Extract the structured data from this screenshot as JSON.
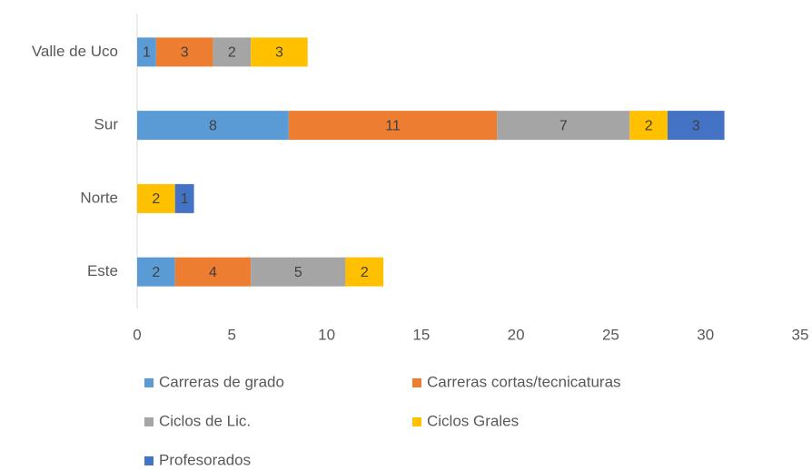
{
  "chart_data": {
    "type": "stacked_barh",
    "categories": [
      "Valle de Uco",
      "Sur",
      "Norte",
      "Este"
    ],
    "series": [
      {
        "name": "Carreras de grado",
        "color": "#5b9bd5",
        "values": [
          1,
          8,
          null,
          2
        ]
      },
      {
        "name": "Carreras cortas/tecnicaturas",
        "color": "#ed7d31",
        "values": [
          3,
          11,
          null,
          4
        ]
      },
      {
        "name": "Ciclos de Lic.",
        "color": "#a5a5a5",
        "values": [
          2,
          7,
          null,
          5
        ]
      },
      {
        "name": "Ciclos Grales",
        "color": "#ffc000",
        "values": [
          3,
          2,
          2,
          2
        ]
      },
      {
        "name": "Profesorados",
        "color": "#4472c4",
        "values": [
          null,
          3,
          1,
          null
        ]
      }
    ],
    "xlim": [
      0,
      35
    ],
    "xticks": [
      0,
      5,
      10,
      15,
      20,
      25,
      30,
      35
    ],
    "grid": false,
    "legend": "bottom"
  }
}
